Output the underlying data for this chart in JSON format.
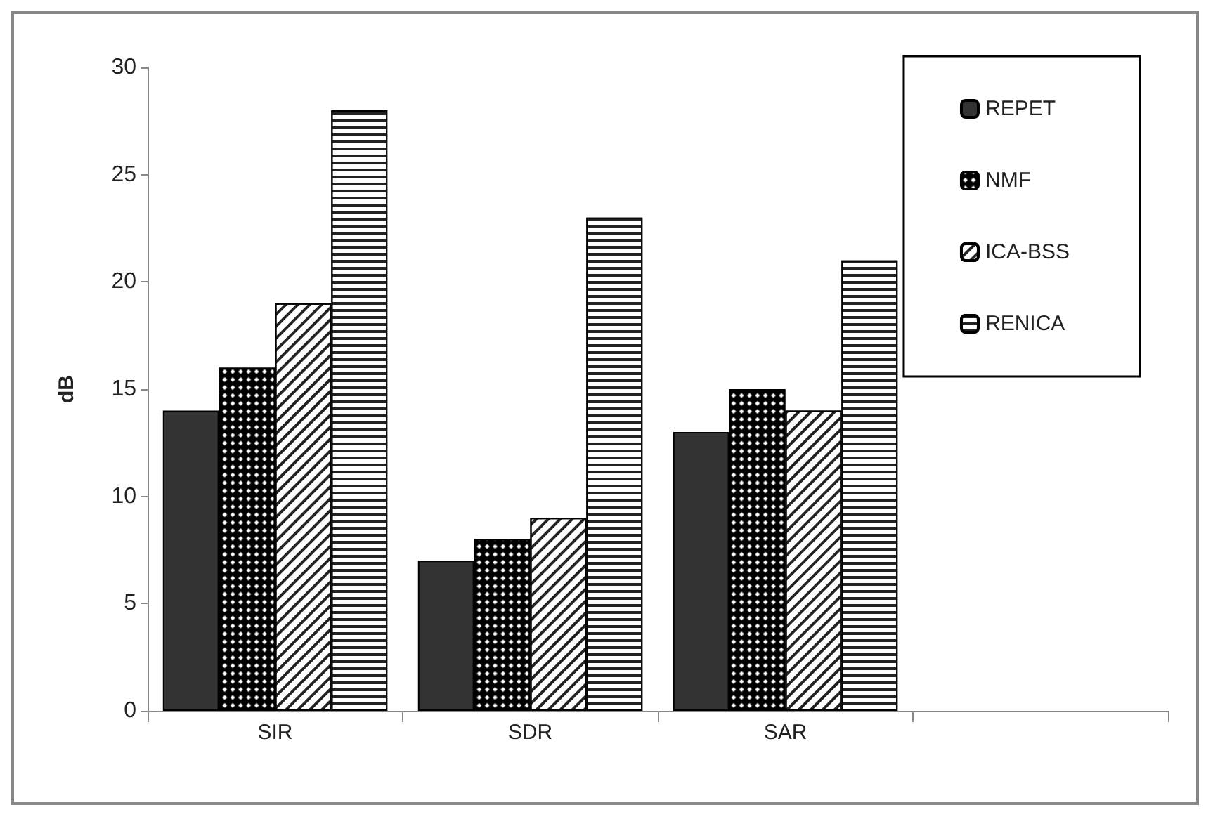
{
  "chart_data": {
    "type": "bar",
    "ylabel": "dB",
    "categories": [
      "SIR",
      "SDR",
      "SAR",
      null
    ],
    "series": [
      {
        "name": "REPET",
        "color": "#333333",
        "values": [
          14,
          7,
          13,
          null
        ]
      },
      {
        "name": "NMF",
        "color": "#000000",
        "values": [
          16,
          8,
          15,
          null
        ]
      },
      {
        "name": "ICA-BSS",
        "color": "#ffffff",
        "values": [
          19,
          9,
          14,
          null
        ]
      },
      {
        "name": "RENICA",
        "color": "#ffffff",
        "values": [
          28,
          23,
          21,
          null
        ]
      }
    ],
    "ylim": [
      0,
      30
    ],
    "yticks": [
      0,
      5,
      10,
      15,
      20,
      25,
      30
    ],
    "grid": false,
    "legend": "top right"
  }
}
